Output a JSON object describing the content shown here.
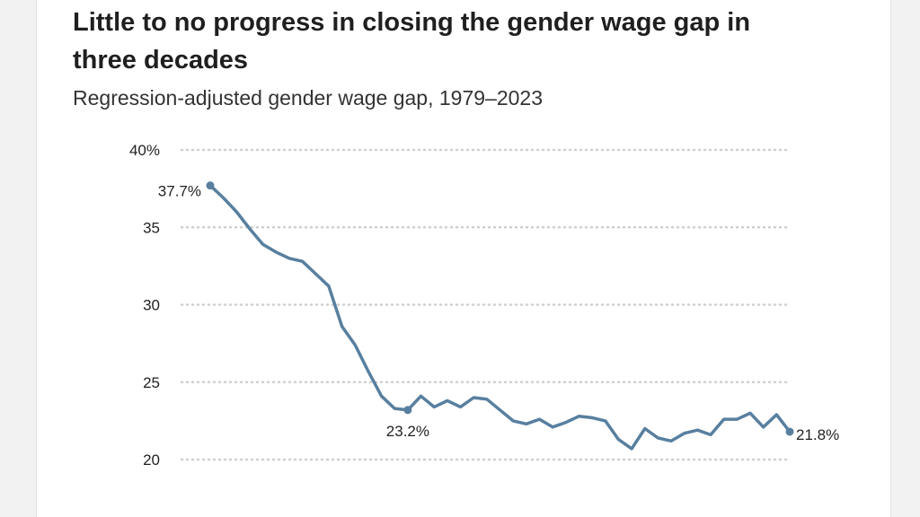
{
  "chart_data": {
    "type": "line",
    "title": "Little to no progress in closing the gender wage gap in three decades",
    "subtitle": "Regression-adjusted gender wage gap, 1979–2023",
    "xlabel": "",
    "ylabel": "",
    "ylim": [
      20,
      40
    ],
    "xlim": [
      1979,
      2023
    ],
    "yticks": [
      {
        "value": 40,
        "label": "40%"
      },
      {
        "value": 35,
        "label": "35"
      },
      {
        "value": 30,
        "label": "30"
      },
      {
        "value": 25,
        "label": "25"
      },
      {
        "value": 20,
        "label": "20"
      }
    ],
    "grid": "horizontal dotted",
    "line_color": "#587f9f",
    "series": [
      {
        "x": [
          1979,
          1980,
          1981,
          1982,
          1983,
          1984,
          1985,
          1986,
          1987,
          1988,
          1989,
          1990,
          1991,
          1992,
          1993,
          1994,
          1995,
          1996,
          1997,
          1998,
          1999,
          2000,
          2001,
          2002,
          2003,
          2004,
          2005,
          2006,
          2007,
          2008,
          2009,
          2010,
          2011,
          2012,
          2013,
          2014,
          2015,
          2016,
          2017,
          2018,
          2019,
          2020,
          2021,
          2022,
          2023
        ],
        "values": [
          37.7,
          36.9,
          36.0,
          34.9,
          33.9,
          33.4,
          33.0,
          32.8,
          32.0,
          31.2,
          28.6,
          27.4,
          25.7,
          24.1,
          23.3,
          23.2,
          24.1,
          23.4,
          23.8,
          23.4,
          24.0,
          23.9,
          23.2,
          22.5,
          22.3,
          22.6,
          22.1,
          22.4,
          22.8,
          22.7,
          22.5,
          21.3,
          20.7,
          22.0,
          21.4,
          21.2,
          21.7,
          21.9,
          21.6,
          22.6,
          22.6,
          23.0,
          22.1,
          22.9,
          21.8
        ]
      }
    ],
    "annotations": [
      {
        "x": 1979,
        "value": 37.7,
        "label": "37.7%",
        "anchor": "left"
      },
      {
        "x": 1994,
        "value": 23.2,
        "label": "23.2%",
        "anchor": "below"
      },
      {
        "x": 2023,
        "value": 21.8,
        "label": "21.8%",
        "anchor": "right"
      }
    ]
  }
}
